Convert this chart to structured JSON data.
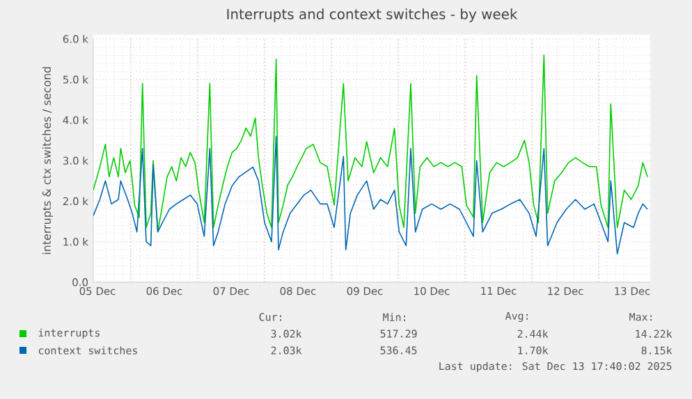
{
  "chart_data": {
    "type": "line",
    "title": "Interrupts and context switches - by week",
    "ylabel": "interrupts & ctx switches / second",
    "xlim": [
      "2025-12-05T10:30",
      "2025-12-13T18:30"
    ],
    "xticks": [
      {
        "value": "2025-12-05T12:00",
        "label": "05 Dec"
      },
      {
        "value": "2025-12-06T00:00",
        "label": null
      },
      {
        "value": "2025-12-06T12:00",
        "label": "06 Dec"
      },
      {
        "value": "2025-12-07T00:00",
        "label": null
      },
      {
        "value": "2025-12-07T12:00",
        "label": "07 Dec"
      },
      {
        "value": "2025-12-08T00:00",
        "label": null
      },
      {
        "value": "2025-12-08T12:00",
        "label": "08 Dec"
      },
      {
        "value": "2025-12-09T00:00",
        "label": null
      },
      {
        "value": "2025-12-09T12:00",
        "label": "09 Dec"
      },
      {
        "value": "2025-12-10T00:00",
        "label": null
      },
      {
        "value": "2025-12-10T12:00",
        "label": "10 Dec"
      },
      {
        "value": "2025-12-11T00:00",
        "label": null
      },
      {
        "value": "2025-12-11T12:00",
        "label": "11 Dec"
      },
      {
        "value": "2025-12-12T00:00",
        "label": null
      },
      {
        "value": "2025-12-12T12:00",
        "label": "12 Dec"
      },
      {
        "value": "2025-12-13T00:00",
        "label": null
      },
      {
        "value": "2025-12-13T12:00",
        "label": "13 Dec"
      }
    ],
    "ylim": [
      0,
      6000
    ],
    "yticks": [
      {
        "value": 0,
        "label": "0.0"
      },
      {
        "value": 1000,
        "label": "1.0 k"
      },
      {
        "value": 2000,
        "label": "2.0 k"
      },
      {
        "value": 3000,
        "label": "3.0 k"
      },
      {
        "value": 4000,
        "label": "4.0 k"
      },
      {
        "value": 5000,
        "label": "5.0 k"
      },
      {
        "value": 6000,
        "label": "6.0 k"
      }
    ],
    "grid": true,
    "legend": "bottom",
    "series": [
      {
        "name": "interrupts",
        "color": "#00cc00",
        "x": [
          "2025-12-05T10:30",
          "2025-12-05T12:50",
          "2025-12-05T14:50",
          "2025-12-05T16:10",
          "2025-12-05T17:50",
          "2025-12-05T19:30",
          "2025-12-05T20:20",
          "2025-12-05T22:00",
          "2025-12-05T23:40",
          "2025-12-06T00:30",
          "2025-12-06T01:20",
          "2025-12-06T03:00",
          "2025-12-06T04:10",
          "2025-12-06T05:30",
          "2025-12-06T07:10",
          "2025-12-06T08:00",
          "2025-12-06T09:40",
          "2025-12-06T11:20",
          "2025-12-06T13:00",
          "2025-12-06T14:40",
          "2025-12-06T16:20",
          "2025-12-06T18:00",
          "2025-12-06T19:40",
          "2025-12-06T21:20",
          "2025-12-06T23:00",
          "2025-12-07T00:20",
          "2025-12-07T02:20",
          "2025-12-07T04:20",
          "2025-12-07T05:40",
          "2025-12-07T07:20",
          "2025-12-07T09:00",
          "2025-12-07T10:40",
          "2025-12-07T12:20",
          "2025-12-07T14:00",
          "2025-12-07T15:40",
          "2025-12-07T17:20",
          "2025-12-07T19:00",
          "2025-12-07T20:40",
          "2025-12-07T21:50",
          "2025-12-07T23:10",
          "2025-12-08T00:50",
          "2025-12-08T02:30",
          "2025-12-08T04:10",
          "2025-12-08T05:00",
          "2025-12-08T06:40",
          "2025-12-08T08:20",
          "2025-12-08T10:00",
          "2025-12-08T11:40",
          "2025-12-08T13:20",
          "2025-12-08T15:00",
          "2025-12-08T17:30",
          "2025-12-08T20:00",
          "2025-12-08T22:30",
          "2025-12-09T01:00",
          "2025-12-09T04:20",
          "2025-12-09T06:00",
          "2025-12-09T08:30",
          "2025-12-09T11:00",
          "2025-12-09T12:40",
          "2025-12-09T15:10",
          "2025-12-09T17:40",
          "2025-12-09T20:10",
          "2025-12-09T22:40",
          "2025-12-10T00:20",
          "2025-12-10T02:00",
          "2025-12-10T04:30",
          "2025-12-10T06:10",
          "2025-12-10T07:50",
          "2025-12-10T10:20",
          "2025-12-10T12:50",
          "2025-12-10T15:20",
          "2025-12-10T17:50",
          "2025-12-10T20:20",
          "2025-12-10T22:50",
          "2025-12-11T00:30",
          "2025-12-11T03:00",
          "2025-12-11T04:10",
          "2025-12-11T06:20",
          "2025-12-11T08:50",
          "2025-12-11T11:20",
          "2025-12-11T13:50",
          "2025-12-11T16:20",
          "2025-12-11T18:50",
          "2025-12-11T21:20",
          "2025-12-11T23:00",
          "2025-12-12T00:40",
          "2025-12-12T02:20",
          "2025-12-12T04:20",
          "2025-12-12T05:40",
          "2025-12-12T08:10",
          "2025-12-12T10:40",
          "2025-12-12T13:10",
          "2025-12-12T15:40",
          "2025-12-12T18:10",
          "2025-12-12T20:40",
          "2025-12-12T23:10",
          "2025-12-13T00:50",
          "2025-12-13T03:20",
          "2025-12-13T04:20",
          "2025-12-13T06:40",
          "2025-12-13T09:10",
          "2025-12-13T11:40",
          "2025-12-13T14:10",
          "2025-12-13T15:50",
          "2025-12-13T17:30"
        ],
        "values": [
          2270,
          2840,
          3400,
          2600,
          3070,
          2600,
          3300,
          2700,
          3000,
          2500,
          1900,
          1600,
          4900,
          1350,
          1700,
          3000,
          1250,
          1900,
          2600,
          2850,
          2500,
          3070,
          2850,
          3200,
          2950,
          2270,
          1470,
          4900,
          1350,
          1900,
          2400,
          2850,
          3200,
          3300,
          3500,
          3800,
          3600,
          4050,
          3070,
          2400,
          1700,
          1350,
          5500,
          1470,
          1900,
          2400,
          2600,
          2850,
          3070,
          3300,
          3400,
          2950,
          2850,
          1900,
          4900,
          2500,
          3070,
          2850,
          3470,
          2700,
          3070,
          2850,
          3800,
          1900,
          1350,
          4900,
          1700,
          2850,
          3070,
          2850,
          2950,
          2850,
          2950,
          2850,
          1900,
          1600,
          5100,
          1470,
          2700,
          2950,
          2850,
          2950,
          3070,
          3500,
          2950,
          1900,
          1470,
          5600,
          1700,
          2500,
          2700,
          2950,
          3070,
          2950,
          2850,
          2850,
          1900,
          1350,
          4400,
          1350,
          2270,
          2040,
          2380,
          2950,
          2600
        ]
      },
      {
        "name": "context switches",
        "color": "#0066b3",
        "x": [
          "2025-12-05T10:30",
          "2025-12-05T12:50",
          "2025-12-05T14:50",
          "2025-12-05T17:00",
          "2025-12-05T19:30",
          "2025-12-05T20:20",
          "2025-12-05T22:50",
          "2025-12-06T00:30",
          "2025-12-06T02:10",
          "2025-12-06T04:10",
          "2025-12-06T05:30",
          "2025-12-06T07:10",
          "2025-12-06T08:00",
          "2025-12-06T09:40",
          "2025-12-06T11:20",
          "2025-12-06T13:50",
          "2025-12-06T16:20",
          "2025-12-06T18:50",
          "2025-12-06T21:20",
          "2025-12-06T23:50",
          "2025-12-07T02:20",
          "2025-12-07T04:20",
          "2025-12-07T05:40",
          "2025-12-07T07:20",
          "2025-12-07T09:50",
          "2025-12-07T12:20",
          "2025-12-07T14:50",
          "2025-12-07T17:20",
          "2025-12-07T19:50",
          "2025-12-07T21:50",
          "2025-12-08T00:00",
          "2025-12-08T02:30",
          "2025-12-08T04:10",
          "2025-12-08T05:00",
          "2025-12-08T06:40",
          "2025-12-08T09:10",
          "2025-12-08T11:40",
          "2025-12-08T14:10",
          "2025-12-08T16:40",
          "2025-12-08T20:00",
          "2025-12-08T22:30",
          "2025-12-09T01:00",
          "2025-12-09T04:20",
          "2025-12-09T05:10",
          "2025-12-09T06:50",
          "2025-12-09T09:20",
          "2025-12-09T12:40",
          "2025-12-09T15:10",
          "2025-12-09T17:40",
          "2025-12-09T20:10",
          "2025-12-09T22:40",
          "2025-12-10T00:20",
          "2025-12-10T02:50",
          "2025-12-10T04:30",
          "2025-12-10T06:10",
          "2025-12-10T08:40",
          "2025-12-10T12:00",
          "2025-12-10T15:20",
          "2025-12-10T18:40",
          "2025-12-10T22:00",
          "2025-12-11T00:30",
          "2025-12-11T03:00",
          "2025-12-11T04:10",
          "2025-12-11T06:20",
          "2025-12-11T09:40",
          "2025-12-11T13:00",
          "2025-12-11T16:20",
          "2025-12-11T19:40",
          "2025-12-11T23:00",
          "2025-12-12T01:30",
          "2025-12-12T04:20",
          "2025-12-12T05:40",
          "2025-12-12T09:00",
          "2025-12-12T12:20",
          "2025-12-12T15:40",
          "2025-12-12T19:00",
          "2025-12-12T22:20",
          "2025-12-13T00:50",
          "2025-12-13T03:20",
          "2025-12-13T04:20",
          "2025-12-13T06:40",
          "2025-12-13T09:10",
          "2025-12-13T12:30",
          "2025-12-13T14:10",
          "2025-12-13T15:50",
          "2025-12-13T17:30"
        ],
        "values": [
          1640,
          2040,
          2500,
          1930,
          2040,
          2500,
          2040,
          1700,
          1240,
          3300,
          1000,
          900,
          2900,
          1240,
          1470,
          1800,
          1930,
          2040,
          2150,
          1930,
          1130,
          3300,
          900,
          1240,
          1930,
          2380,
          2600,
          2720,
          2840,
          2500,
          1470,
          1000,
          3600,
          800,
          1240,
          1700,
          1930,
          2150,
          2270,
          1930,
          1930,
          1350,
          3100,
          800,
          1700,
          2150,
          2500,
          1800,
          2040,
          1930,
          2270,
          1240,
          900,
          3300,
          1240,
          1800,
          1930,
          1800,
          1930,
          1800,
          1470,
          1130,
          3000,
          1240,
          1700,
          1800,
          1930,
          2040,
          1700,
          1130,
          3300,
          900,
          1470,
          1800,
          2040,
          1800,
          1930,
          1470,
          1000,
          2500,
          700,
          1470,
          1350,
          1700,
          1930,
          1800
        ]
      }
    ],
    "annotations": [
      "Cur:",
      "Min:",
      "Avg:",
      "Max:",
      "3.02k",
      "517.29",
      "2.44k",
      "14.22k",
      "2.03k",
      "536.45",
      "1.70k",
      "8.15k",
      "Last update: Sat Dec 13 17:40:02 2025"
    ]
  }
}
